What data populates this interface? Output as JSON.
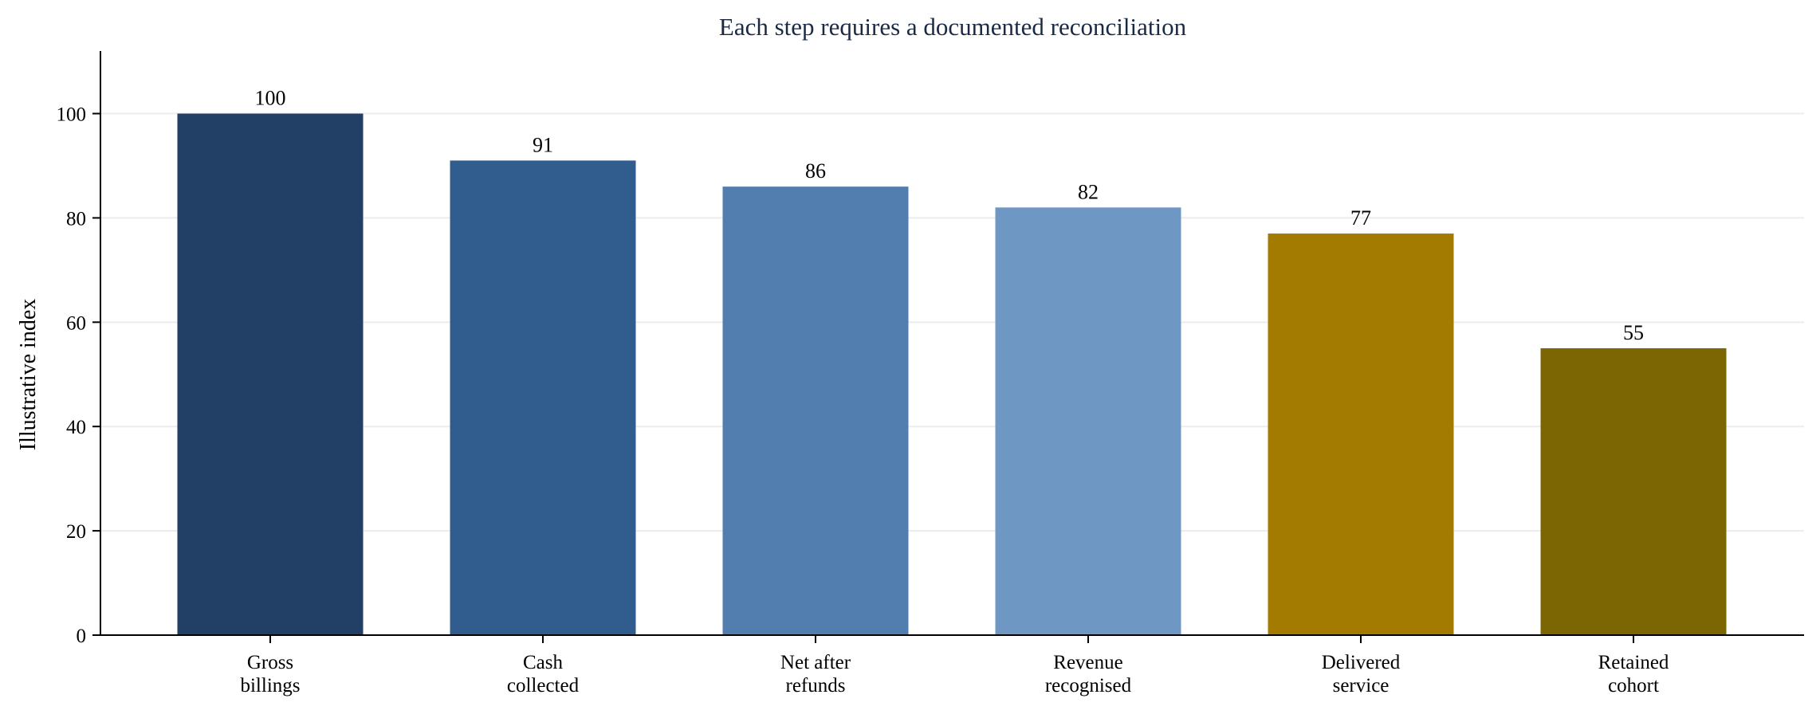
{
  "chart_data": {
    "type": "bar",
    "title": "Each step requires a documented reconciliation",
    "xlabel": "",
    "ylabel": "Illustrative index",
    "ylim": [
      0,
      112
    ],
    "yticks": [
      0,
      20,
      40,
      60,
      80,
      100
    ],
    "grid": "horizontal",
    "categories": [
      [
        "Gross",
        "billings"
      ],
      [
        "Cash",
        "collected"
      ],
      [
        "Net after",
        "refunds"
      ],
      [
        "Revenue",
        "recognised"
      ],
      [
        "Delivered",
        "service"
      ],
      [
        "Retained",
        "cohort"
      ]
    ],
    "values": [
      100,
      91,
      86,
      82,
      77,
      55
    ],
    "data_labels": [
      "100",
      "91",
      "86",
      "82",
      "77",
      "55"
    ],
    "colors": [
      "#223f66",
      "#315d8e",
      "#517eae",
      "#6e98c3",
      "#a37b00",
      "#7c6503"
    ]
  }
}
